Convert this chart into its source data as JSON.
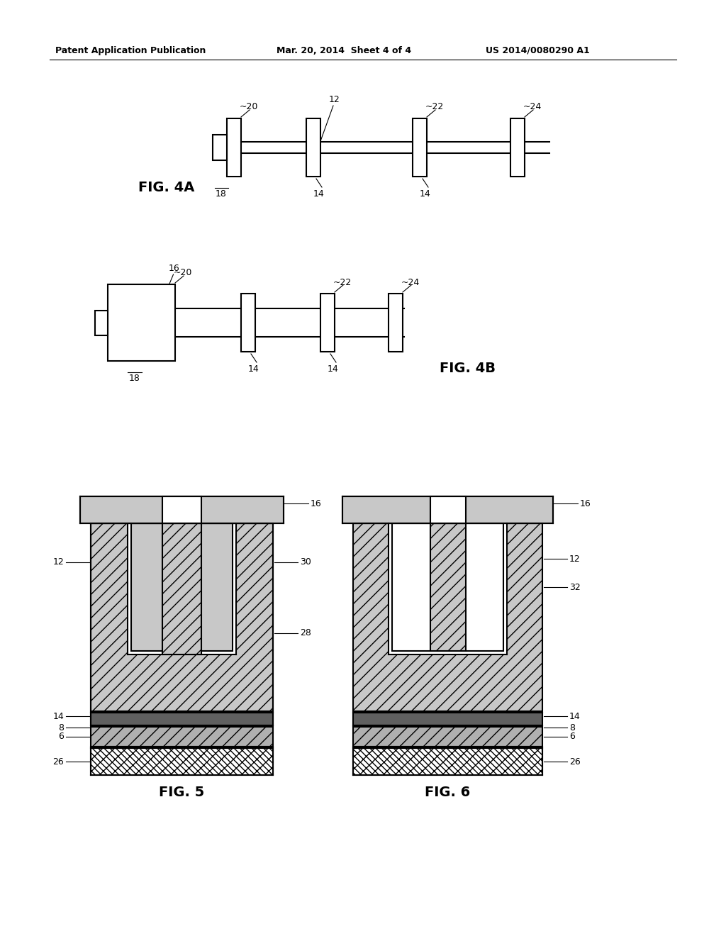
{
  "bg_color": "#ffffff",
  "header_left": "Patent Application Publication",
  "header_mid": "Mar. 20, 2014  Sheet 4 of 4",
  "header_right": "US 2014/0080290 A1",
  "fig4a_label": "FIG. 4A",
  "fig4b_label": "FIG. 4B",
  "fig5_label": "FIG. 5",
  "fig6_label": "FIG. 6",
  "black": "#000000",
  "white": "#ffffff",
  "gray_dot": "#c8c8c8",
  "gray_hatch": "#d0d0d0",
  "lw": 1.5,
  "lw_thin": 0.8,
  "label_fs": 9,
  "fig_label_fs": 14
}
